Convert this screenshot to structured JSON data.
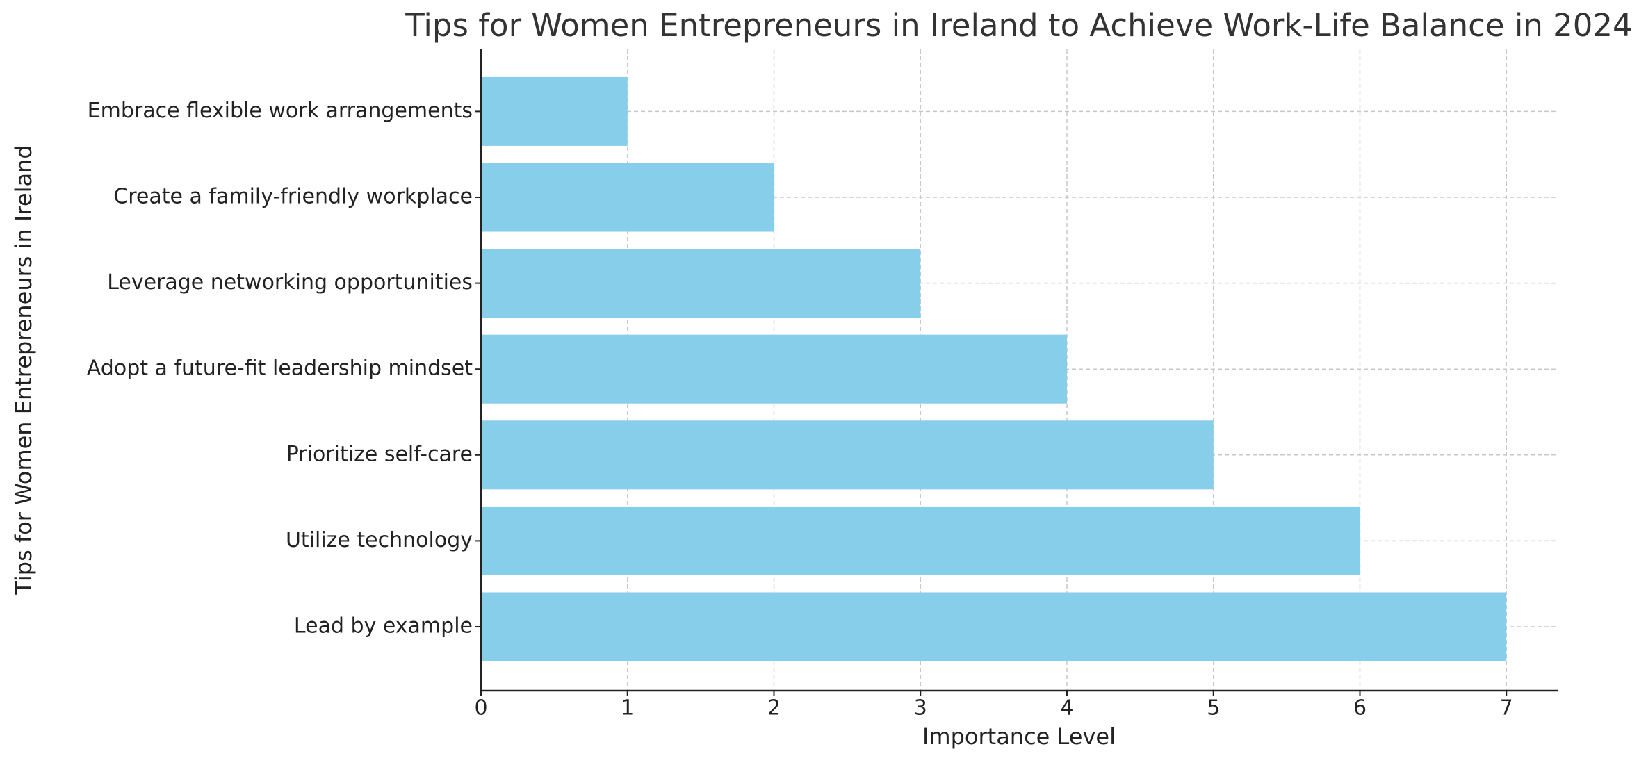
{
  "chart_data": {
    "type": "barh",
    "title": "Tips for Women Entrepreneurs in Ireland to Achieve Work-Life Balance in 2024",
    "x_label": "Importance Level",
    "y_label": "Tips for Women Entrepreneurs in Ireland",
    "categories": [
      "Lead by example",
      "Utilize technology",
      "Prioritize self-care",
      "Adopt a future-fit leadership mindset",
      "Leverage networking opportunities",
      "Create a family-friendly workplace",
      "Embrace flexible work arrangements"
    ],
    "values": [
      7,
      6,
      5,
      4,
      3,
      2,
      1
    ],
    "color": "#87ceeb",
    "xlim": [
      0,
      7.35
    ],
    "xticks": [
      0,
      1,
      2,
      3,
      4,
      5,
      6,
      7
    ],
    "grid": true
  }
}
